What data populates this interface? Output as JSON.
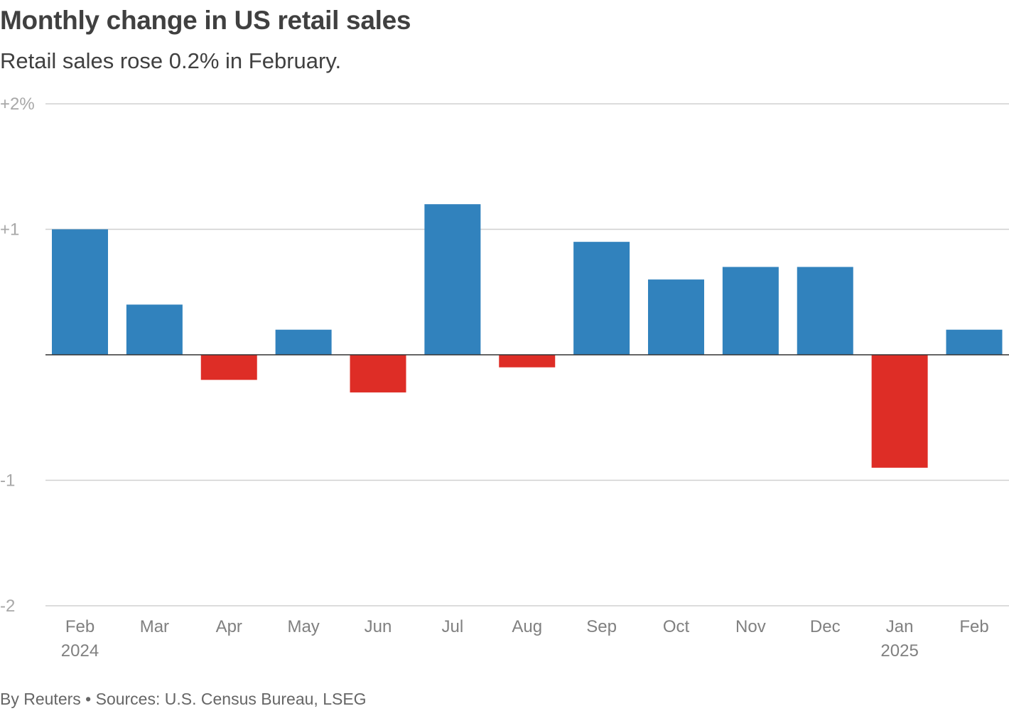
{
  "header": {
    "title": "Monthly change in US retail sales",
    "subtitle": "Retail sales rose 0.2% in February."
  },
  "footer": {
    "credit": "By Reuters • Sources: U.S. Census Bureau, LSEG"
  },
  "colors": {
    "positive": "#3182bd",
    "negative": "#de2d26",
    "grid": "#d0d0d0",
    "zero_line": "#333333"
  },
  "chart_data": {
    "type": "bar",
    "title": "Monthly change in US retail sales",
    "subtitle": "Retail sales rose 0.2% in February.",
    "categories": [
      "Feb",
      "Mar",
      "Apr",
      "May",
      "Jun",
      "Jul",
      "Aug",
      "Sep",
      "Oct",
      "Nov",
      "Dec",
      "Jan",
      "Feb"
    ],
    "category_sublabels": [
      "2024",
      "",
      "",
      "",
      "",
      "",
      "",
      "",
      "",
      "",
      "",
      "2025",
      ""
    ],
    "values": [
      1.0,
      0.4,
      -0.2,
      0.2,
      -0.3,
      1.2,
      -0.1,
      0.9,
      0.6,
      0.7,
      0.7,
      -0.9,
      0.2
    ],
    "xlabel": "",
    "ylabel": "",
    "ylim": [
      -2,
      2
    ],
    "yticks": [
      2,
      1,
      -1,
      -2
    ],
    "ytick_labels": [
      "+2%",
      "+1",
      "-1",
      "-2"
    ],
    "grid": true,
    "source": "By Reuters • Sources: U.S. Census Bureau, LSEG"
  }
}
